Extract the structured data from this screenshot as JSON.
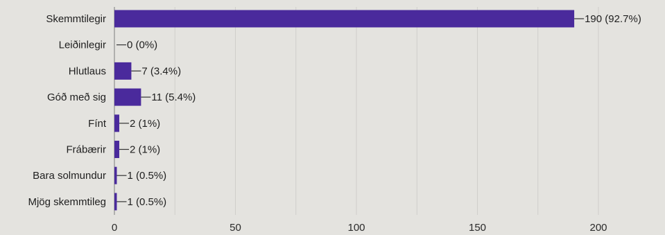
{
  "chart_data": {
    "type": "bar",
    "orientation": "horizontal",
    "categories": [
      "Skemmtilegir",
      "Leiðinlegir",
      "Hlutlaus",
      "Góð með sig",
      "Fínt",
      "Frábærir",
      "Bara solmundur",
      "Mjög skemmtileg"
    ],
    "values": [
      190,
      0,
      7,
      11,
      2,
      2,
      1,
      1
    ],
    "data_labels": [
      "190 (92.7%)",
      "0 (0%)",
      "7 (3.4%)",
      "11 (5.4%)",
      "2 (1%)",
      "2 (1%)",
      "1 (0.5%)",
      "1 (0.5%)"
    ],
    "xticks": [
      "0",
      "50",
      "100",
      "150",
      "200"
    ],
    "xlim": [
      0,
      200
    ],
    "bar_color": "#4a2a9c",
    "grid": true,
    "legend": "none"
  }
}
